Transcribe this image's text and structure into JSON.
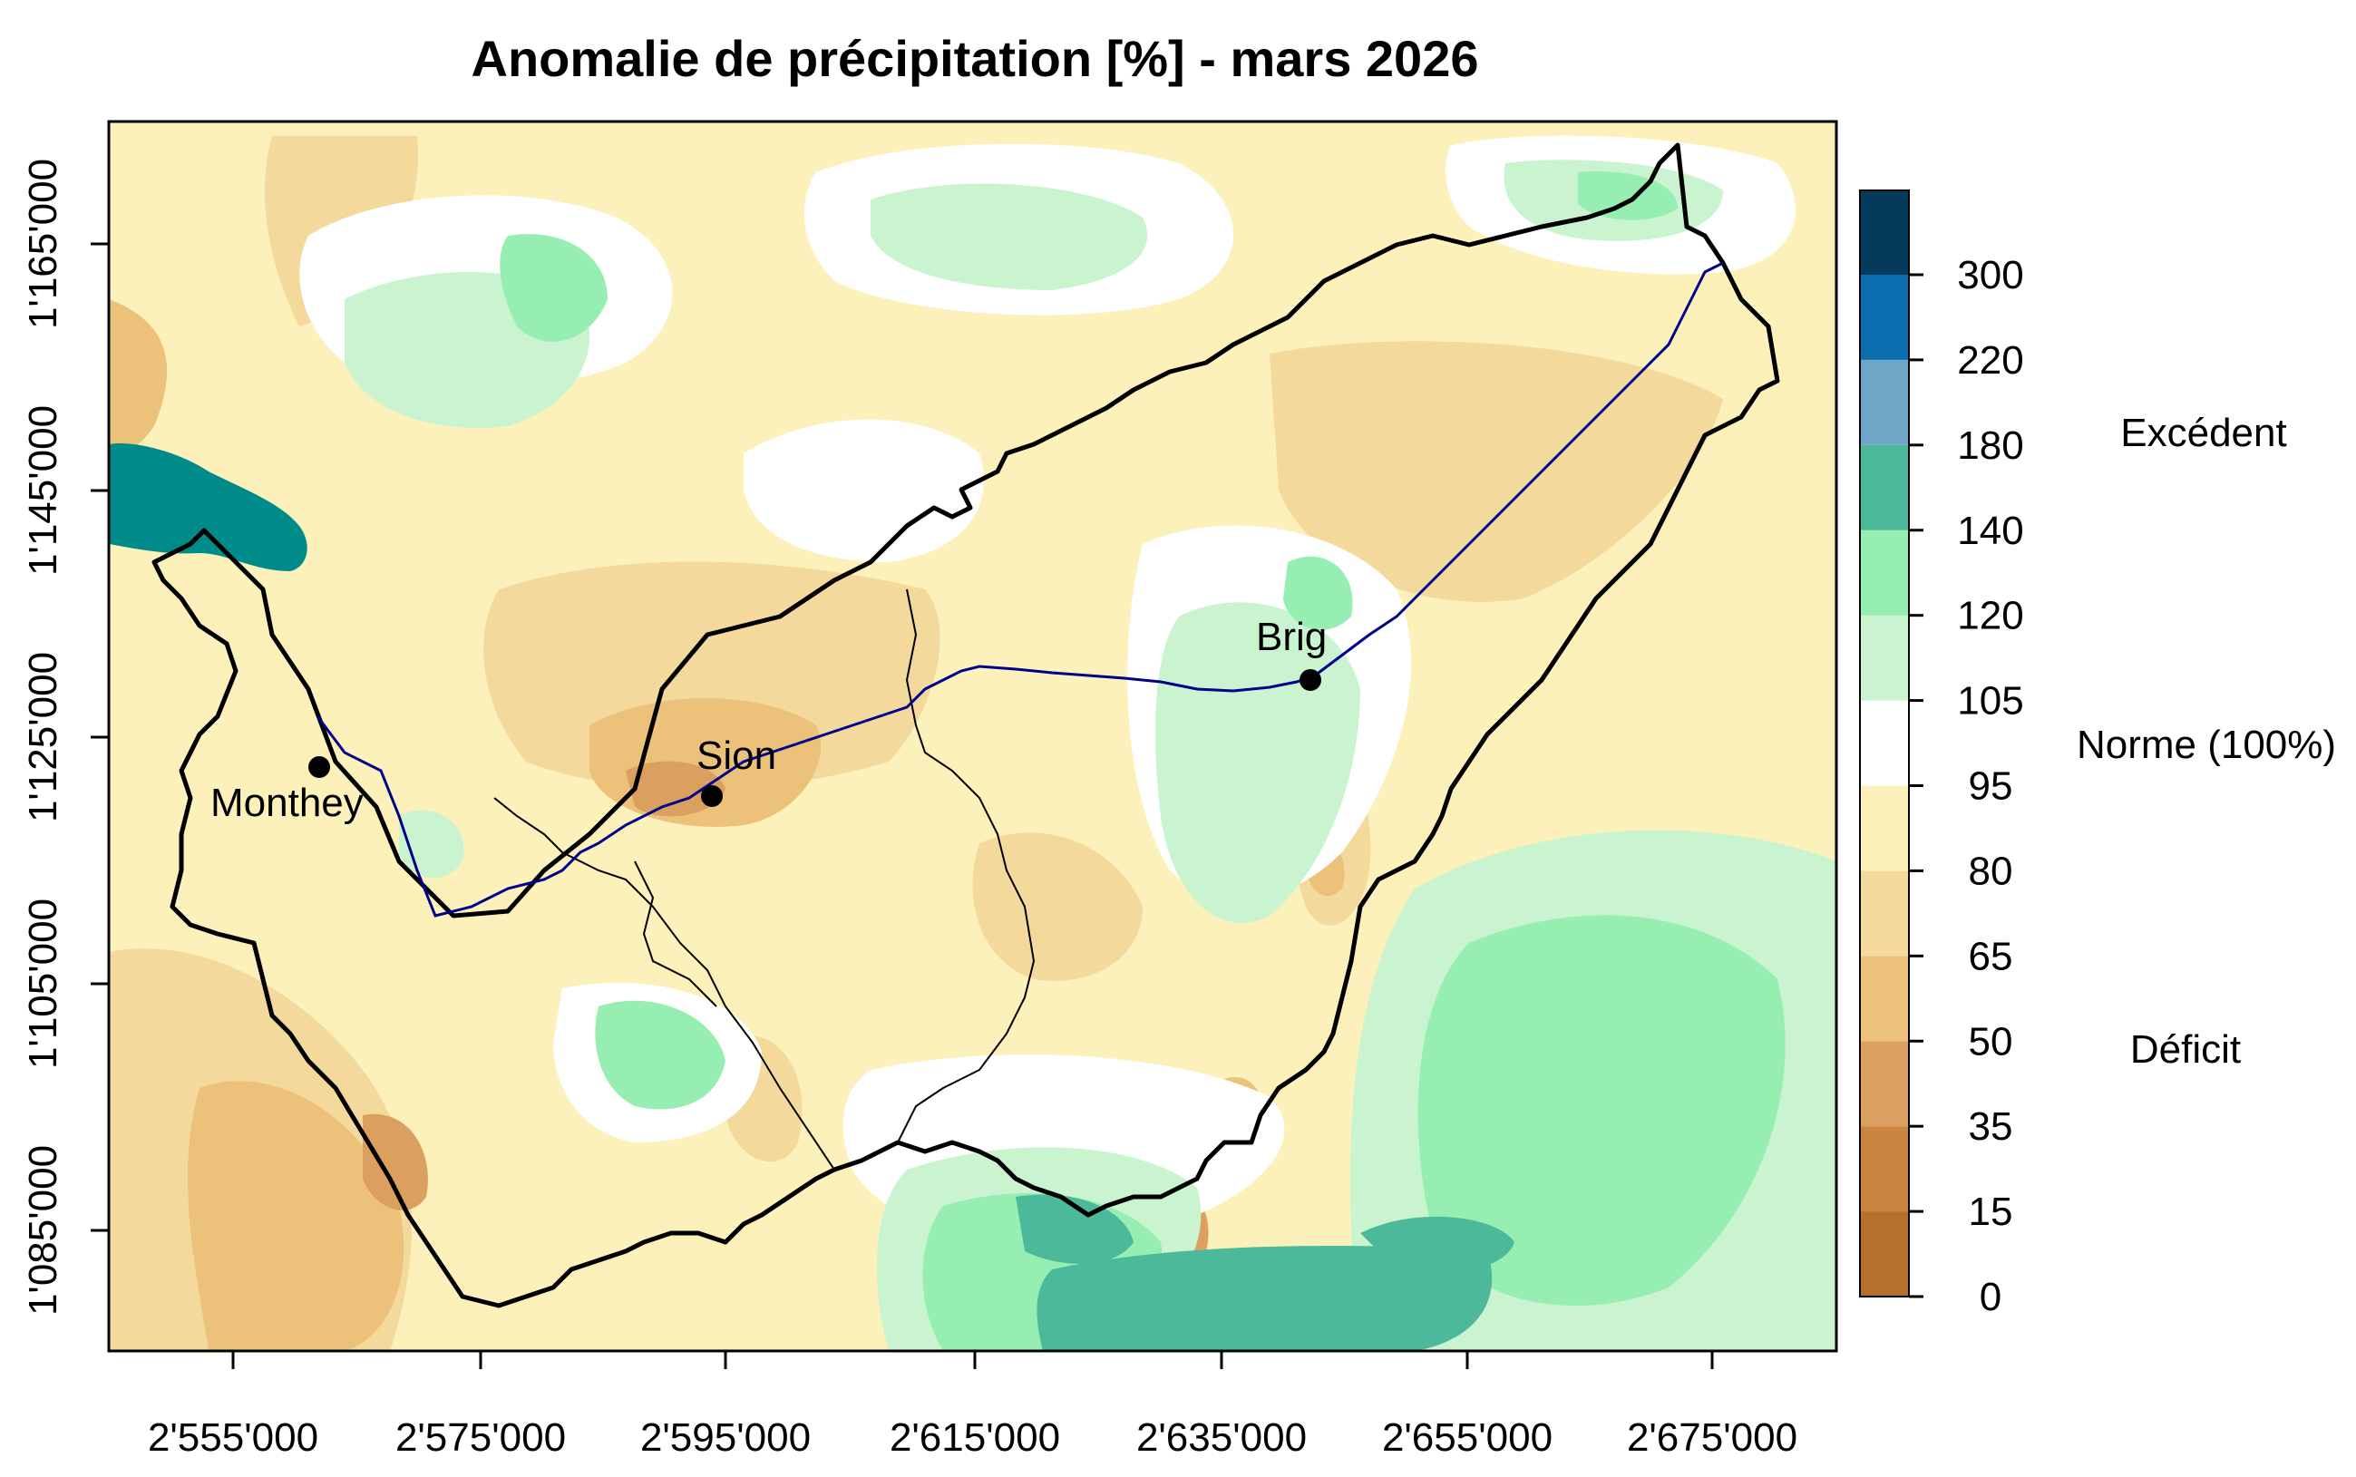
{
  "title": "Anomalie de précipitation [%] - mars 2026",
  "x_axis": {
    "ticks": [
      "2'555'000",
      "2'575'000",
      "2'595'000",
      "2'615'000",
      "2'635'000",
      "2'655'000",
      "2'675'000"
    ]
  },
  "y_axis": {
    "ticks": [
      "1'085'000",
      "1'105'000",
      "1'125'000",
      "1'145'000",
      "1'165'000"
    ]
  },
  "cities": [
    {
      "name": "Monthey"
    },
    {
      "name": "Sion"
    },
    {
      "name": "Brig"
    }
  ],
  "legend": {
    "breaks": [
      "0",
      "15",
      "35",
      "50",
      "65",
      "80",
      "95",
      "105",
      "120",
      "140",
      "180",
      "220",
      "300"
    ],
    "colors": [
      "#b5702d",
      "#c9843f",
      "#dba05f",
      "#ecc27a",
      "#f3d99b",
      "#fdf1bb",
      "#ffffff",
      "#c9f4cf",
      "#97eeb3",
      "#4cb99a",
      "#6fa6c7",
      "#0b6dad",
      "#053a5c"
    ],
    "class_labels": {
      "excedent": "Excédent",
      "norme": "Norme (100%)",
      "deficit": "Déficit"
    }
  },
  "map_colors": {
    "lake": "#008b8b",
    "river": "#00008b",
    "border": "#000000"
  }
}
